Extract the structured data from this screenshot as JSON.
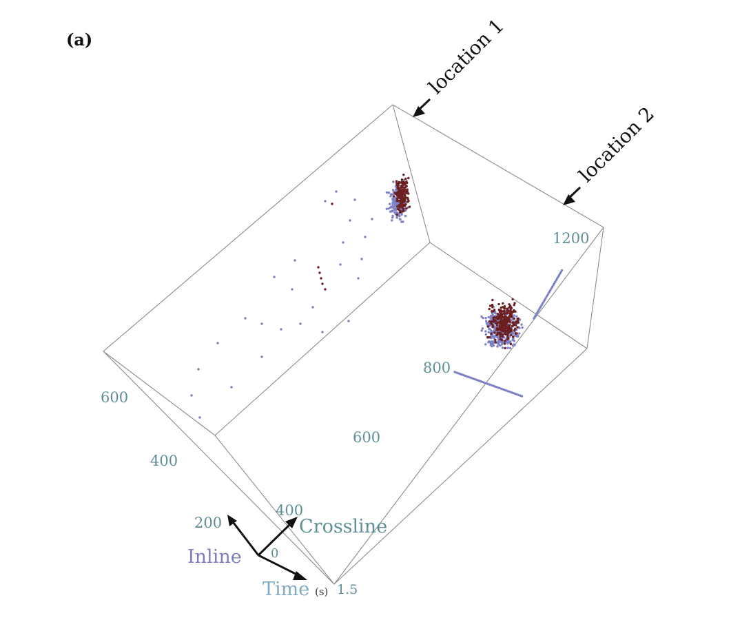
{
  "panel_label": "(a)",
  "annotations": [
    "location 1",
    "location 2"
  ],
  "axis_names": {
    "inline": "Inline",
    "crossline": "Crossline",
    "time": "Time",
    "time_unit": "(s)"
  },
  "tick_labels": {
    "inline": [
      "200",
      "400",
      "600"
    ],
    "crossline": [
      "400",
      "600",
      "800",
      "1200"
    ],
    "origin": "0",
    "time_end": "1.5"
  },
  "colors": {
    "edge": "#8c8c8c",
    "tick": "#5f8f96",
    "inline_label": "#7a7fc0",
    "crossline_label": "#5f8f96",
    "time_label": "#7fa9c0",
    "points_a": "#7d80c4",
    "points_b": "#6b1f1f"
  },
  "icons": [
    "arrow-icon"
  ]
}
